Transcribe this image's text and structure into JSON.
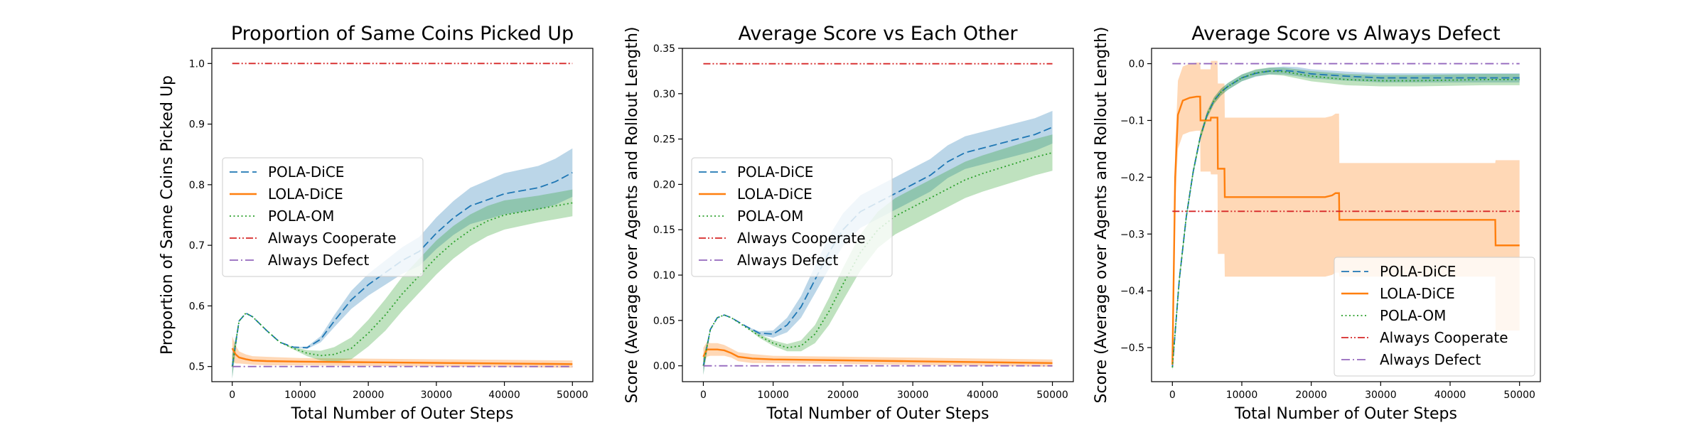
{
  "chart_data": [
    {
      "type": "line",
      "title": "Proportion of Same Coins Picked Up",
      "xlabel": "Total Number of Outer Steps",
      "ylabel": "Proportion of Same Coins Picked Up",
      "xlim": [
        -3000,
        53000
      ],
      "ylim": [
        0.475,
        1.025
      ],
      "xticks": [
        0,
        10000,
        20000,
        30000,
        40000,
        50000
      ],
      "xtick_labels": [
        "0",
        "10000",
        "20000",
        "30000",
        "40000",
        "50000"
      ],
      "yticks": [
        0.5,
        0.6,
        0.7,
        0.8,
        0.9,
        1.0
      ],
      "ytick_labels": [
        "0.5",
        "0.6",
        "0.7",
        "0.8",
        "0.9",
        "1.0"
      ],
      "legend_position": "center-left",
      "series": [
        {
          "name": "POLA-DiCE",
          "color": "#1f77b4",
          "dash": "dashed",
          "x": [
            0,
            1000,
            2000,
            3000,
            5000,
            7000,
            9000,
            11000,
            13000,
            15000,
            17500,
            20000,
            22500,
            25000,
            27500,
            30000,
            32500,
            35000,
            37500,
            40000,
            42500,
            45000,
            47500,
            50000
          ],
          "values": [
            0.5,
            0.575,
            0.588,
            0.582,
            0.56,
            0.54,
            0.532,
            0.531,
            0.545,
            0.575,
            0.61,
            0.635,
            0.655,
            0.675,
            0.69,
            0.72,
            0.745,
            0.765,
            0.775,
            0.785,
            0.79,
            0.795,
            0.805,
            0.82
          ],
          "band": [
            0.02,
            0.0,
            0.0,
            0.0,
            0.0,
            0.0,
            0.0,
            0.002,
            0.005,
            0.01,
            0.015,
            0.018,
            0.02,
            0.022,
            0.024,
            0.026,
            0.028,
            0.03,
            0.032,
            0.034,
            0.035,
            0.036,
            0.038,
            0.04
          ]
        },
        {
          "name": "LOLA-DiCE",
          "color": "#ff7f0e",
          "dash": "solid",
          "x": [
            0,
            500,
            1000,
            2000,
            3000,
            5000,
            10000,
            20000,
            30000,
            40000,
            50000
          ],
          "values": [
            0.53,
            0.52,
            0.515,
            0.512,
            0.51,
            0.509,
            0.508,
            0.507,
            0.506,
            0.505,
            0.504
          ],
          "band": [
            0.02,
            0.015,
            0.01,
            0.008,
            0.007,
            0.007,
            0.006,
            0.006,
            0.006,
            0.006,
            0.006
          ]
        },
        {
          "name": "POLA-OM",
          "color": "#2ca02c",
          "dash": "dotted",
          "x": [
            0,
            1000,
            2000,
            3000,
            5000,
            7000,
            9000,
            11000,
            13000,
            15000,
            17500,
            20000,
            22500,
            25000,
            27500,
            30000,
            32500,
            35000,
            37500,
            40000,
            42500,
            45000,
            47500,
            50000
          ],
          "values": [
            0.5,
            0.575,
            0.588,
            0.582,
            0.56,
            0.54,
            0.53,
            0.522,
            0.518,
            0.52,
            0.53,
            0.555,
            0.585,
            0.62,
            0.65,
            0.68,
            0.705,
            0.725,
            0.74,
            0.75,
            0.755,
            0.76,
            0.765,
            0.77
          ],
          "band": [
            0.02,
            0.0,
            0.0,
            0.0,
            0.0,
            0.0,
            0.002,
            0.005,
            0.008,
            0.012,
            0.018,
            0.022,
            0.026,
            0.028,
            0.028,
            0.028,
            0.027,
            0.026,
            0.025,
            0.024,
            0.023,
            0.022,
            0.022,
            0.022
          ]
        },
        {
          "name": "Always Cooperate",
          "color": "#d62728",
          "dash": "dashdotdot",
          "x": [
            0,
            50000
          ],
          "values": [
            1.0,
            1.0
          ]
        },
        {
          "name": "Always Defect",
          "color": "#9467bd",
          "dash": "dashdot",
          "x": [
            0,
            50000
          ],
          "values": [
            0.5,
            0.5
          ]
        }
      ]
    },
    {
      "type": "line",
      "title": "Average Score vs Each Other",
      "xlabel": "Total Number of Outer Steps",
      "ylabel": "Score (Average over Agents and Rollout Length)",
      "xlim": [
        -3000,
        53000
      ],
      "ylim": [
        -0.0175,
        0.35
      ],
      "xticks": [
        0,
        10000,
        20000,
        30000,
        40000,
        50000
      ],
      "xtick_labels": [
        "0",
        "10000",
        "20000",
        "30000",
        "40000",
        "50000"
      ],
      "yticks": [
        0.0,
        0.05,
        0.1,
        0.15,
        0.2,
        0.25,
        0.3,
        0.35
      ],
      "ytick_labels": [
        "0.00",
        "0.05",
        "0.10",
        "0.15",
        "0.20",
        "0.25",
        "0.30",
        "0.35"
      ],
      "legend_position": "center-left",
      "series": [
        {
          "name": "POLA-DiCE",
          "color": "#1f77b4",
          "dash": "dashed",
          "x": [
            0,
            1000,
            2000,
            3000,
            4000,
            6000,
            8000,
            10000,
            12000,
            14000,
            16000,
            18000,
            20000,
            22500,
            25000,
            27500,
            30000,
            32500,
            35000,
            37500,
            40000,
            42500,
            45000,
            47500,
            50000
          ],
          "values": [
            0.0,
            0.04,
            0.053,
            0.056,
            0.053,
            0.044,
            0.036,
            0.035,
            0.045,
            0.065,
            0.095,
            0.125,
            0.15,
            0.17,
            0.18,
            0.19,
            0.2,
            0.21,
            0.225,
            0.235,
            0.24,
            0.245,
            0.25,
            0.255,
            0.263
          ],
          "band": [
            0.01,
            0.0,
            0.0,
            0.0,
            0.0,
            0.0,
            0.002,
            0.004,
            0.008,
            0.012,
            0.015,
            0.018,
            0.018,
            0.018,
            0.018,
            0.018,
            0.018,
            0.018,
            0.018,
            0.018,
            0.018,
            0.018,
            0.018,
            0.018,
            0.018
          ]
        },
        {
          "name": "LOLA-DiCE",
          "color": "#ff7f0e",
          "dash": "solid",
          "x": [
            0,
            500,
            1000,
            2000,
            3000,
            4000,
            5000,
            7000,
            10000,
            20000,
            30000,
            40000,
            50000
          ],
          "values": [
            0.01,
            0.018,
            0.018,
            0.018,
            0.017,
            0.014,
            0.01,
            0.008,
            0.007,
            0.006,
            0.005,
            0.004,
            0.003
          ],
          "band": [
            0.01,
            0.008,
            0.007,
            0.007,
            0.006,
            0.005,
            0.005,
            0.005,
            0.004,
            0.004,
            0.004,
            0.004,
            0.004
          ]
        },
        {
          "name": "POLA-OM",
          "color": "#2ca02c",
          "dash": "dotted",
          "x": [
            0,
            1000,
            2000,
            3000,
            4000,
            6000,
            8000,
            10000,
            12000,
            14000,
            16000,
            18000,
            20000,
            22500,
            25000,
            27500,
            30000,
            32500,
            35000,
            37500,
            40000,
            42500,
            45000,
            47500,
            50000
          ],
          "values": [
            0.0,
            0.04,
            0.053,
            0.056,
            0.053,
            0.043,
            0.033,
            0.025,
            0.02,
            0.022,
            0.035,
            0.06,
            0.09,
            0.125,
            0.15,
            0.165,
            0.175,
            0.185,
            0.195,
            0.205,
            0.212,
            0.218,
            0.224,
            0.23,
            0.235
          ],
          "band": [
            0.01,
            0.0,
            0.0,
            0.0,
            0.0,
            0.0,
            0.002,
            0.003,
            0.004,
            0.006,
            0.01,
            0.015,
            0.018,
            0.02,
            0.02,
            0.02,
            0.02,
            0.02,
            0.02,
            0.02,
            0.02,
            0.02,
            0.02,
            0.02,
            0.02
          ]
        },
        {
          "name": "Always Cooperate",
          "color": "#d62728",
          "dash": "dashdotdot",
          "x": [
            0,
            50000
          ],
          "values": [
            0.333,
            0.333
          ]
        },
        {
          "name": "Always Defect",
          "color": "#9467bd",
          "dash": "dashdot",
          "x": [
            0,
            50000
          ],
          "values": [
            0.0,
            0.0
          ]
        }
      ]
    },
    {
      "type": "line",
      "title": "Average Score vs Always Defect",
      "xlabel": "Total Number of Outer Steps",
      "ylabel": "Score (Average over Agents and Rollout Length)",
      "xlim": [
        -3000,
        53000
      ],
      "ylim": [
        -0.56,
        0.027
      ],
      "xticks": [
        0,
        10000,
        20000,
        30000,
        40000,
        50000
      ],
      "xtick_labels": [
        "0",
        "10000",
        "20000",
        "30000",
        "40000",
        "50000"
      ],
      "yticks": [
        -0.5,
        -0.4,
        -0.3,
        -0.2,
        -0.1,
        0.0
      ],
      "ytick_labels": [
        "−0.5",
        "−0.4",
        "−0.3",
        "−0.2",
        "−0.1",
        "0.0"
      ],
      "legend_position": "lower-right",
      "series": [
        {
          "name": "POLA-DiCE",
          "color": "#1f77b4",
          "dash": "dashed",
          "x": [
            0,
            1000,
            2000,
            3000,
            4000,
            5000,
            6000,
            7000,
            8000,
            10000,
            12000,
            14000,
            16000,
            18000,
            20000,
            25000,
            30000,
            35000,
            40000,
            45000,
            50000
          ],
          "values": [
            -0.535,
            -0.38,
            -0.27,
            -0.19,
            -0.13,
            -0.09,
            -0.065,
            -0.05,
            -0.04,
            -0.025,
            -0.017,
            -0.013,
            -0.012,
            -0.014,
            -0.018,
            -0.022,
            -0.025,
            -0.025,
            -0.025,
            -0.025,
            -0.025
          ],
          "band": [
            0.005,
            0.006,
            0.006,
            0.006,
            0.006,
            0.006,
            0.006,
            0.006,
            0.006,
            0.006,
            0.006,
            0.006,
            0.007,
            0.008,
            0.008,
            0.008,
            0.008,
            0.008,
            0.008,
            0.008,
            0.008
          ]
        },
        {
          "name": "LOLA-DiCE",
          "color": "#ff7f0e",
          "dash": "solid",
          "x": [
            0,
            400,
            800,
            1500,
            2500,
            3500,
            4000,
            4050,
            5500,
            5550,
            6500,
            6550,
            7500,
            7550,
            22000,
            23000,
            23500,
            24000,
            24050,
            46000,
            46500,
            46550,
            50000
          ],
          "values": [
            -0.53,
            -0.2,
            -0.09,
            -0.065,
            -0.06,
            -0.058,
            -0.058,
            -0.1,
            -0.1,
            -0.095,
            -0.095,
            -0.185,
            -0.185,
            -0.235,
            -0.235,
            -0.232,
            -0.228,
            -0.228,
            -0.275,
            -0.275,
            -0.275,
            -0.32,
            -0.32
          ],
          "band": [
            0.01,
            0.05,
            0.06,
            0.06,
            0.06,
            0.06,
            0.06,
            0.09,
            0.09,
            0.1,
            0.1,
            0.15,
            0.15,
            0.14,
            0.14,
            0.14,
            0.14,
            0.14,
            0.1,
            0.1,
            0.1,
            0.15,
            0.15
          ]
        },
        {
          "name": "POLA-OM",
          "color": "#2ca02c",
          "dash": "dotted",
          "x": [
            0,
            1000,
            2000,
            3000,
            4000,
            5000,
            6000,
            7000,
            8000,
            10000,
            12000,
            14000,
            16000,
            18000,
            20000,
            25000,
            30000,
            35000,
            40000,
            45000,
            50000
          ],
          "values": [
            -0.535,
            -0.38,
            -0.27,
            -0.19,
            -0.13,
            -0.09,
            -0.065,
            -0.05,
            -0.04,
            -0.025,
            -0.016,
            -0.013,
            -0.014,
            -0.018,
            -0.022,
            -0.028,
            -0.03,
            -0.03,
            -0.029,
            -0.028,
            -0.028
          ],
          "band": [
            0.005,
            0.006,
            0.006,
            0.006,
            0.006,
            0.006,
            0.006,
            0.006,
            0.006,
            0.006,
            0.006,
            0.006,
            0.007,
            0.008,
            0.009,
            0.01,
            0.01,
            0.01,
            0.01,
            0.01,
            0.01
          ]
        },
        {
          "name": "Always Cooperate",
          "color": "#d62728",
          "dash": "dashdotdot",
          "x": [
            0,
            50000
          ],
          "values": [
            -0.26,
            -0.26
          ]
        },
        {
          "name": "Always Defect",
          "color": "#9467bd",
          "dash": "dashdot",
          "x": [
            0,
            50000
          ],
          "values": [
            0.0,
            0.0
          ]
        }
      ]
    }
  ]
}
